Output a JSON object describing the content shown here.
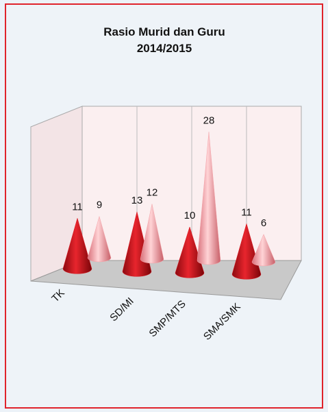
{
  "chart_data": {
    "type": "cone3d",
    "title": [
      "Rasio Murid dan Guru",
      "2014/2015"
    ],
    "categories": [
      "TK",
      "SD/MI",
      "SMP/MTS",
      "SMA/SMK"
    ],
    "series": [
      {
        "color": "#d8151e",
        "values": [
          11,
          13,
          10,
          11
        ]
      },
      {
        "color": "#f4a3a8",
        "values": [
          9,
          12,
          28,
          6
        ]
      }
    ]
  }
}
